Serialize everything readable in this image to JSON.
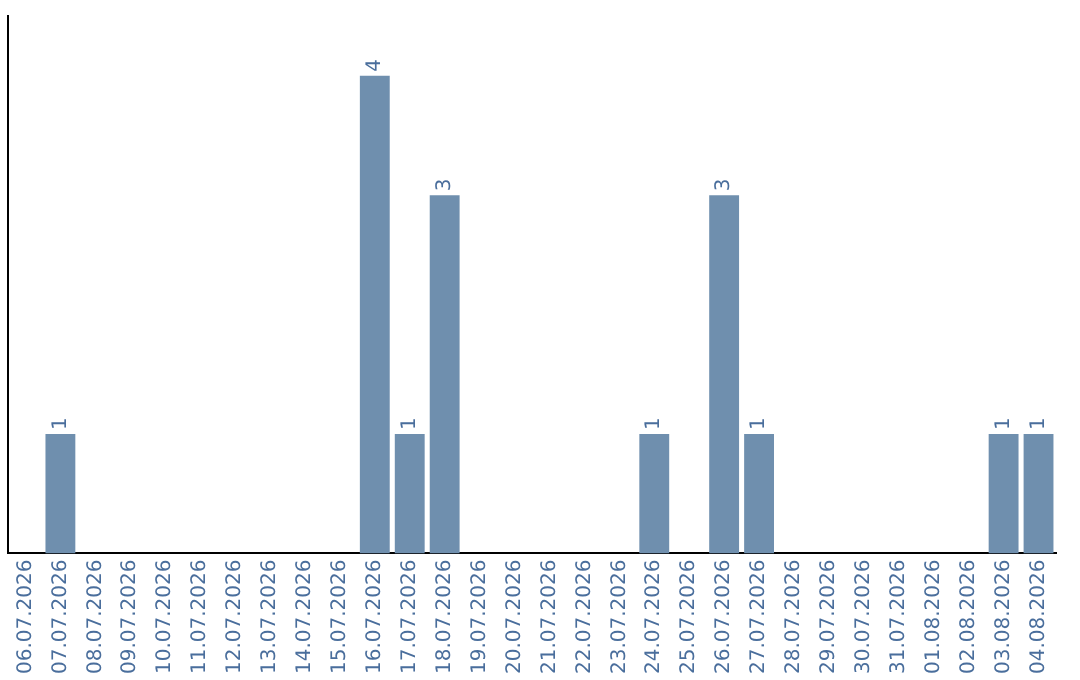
{
  "chart_data": {
    "type": "bar",
    "categories": [
      "06.07.2026",
      "07.07.2026",
      "08.07.2026",
      "09.07.2026",
      "10.07.2026",
      "11.07.2026",
      "12.07.2026",
      "13.07.2026",
      "14.07.2026",
      "15.07.2026",
      "16.07.2026",
      "17.07.2026",
      "18.07.2026",
      "19.07.2026",
      "20.07.2026",
      "21.07.2026",
      "22.07.2026",
      "23.07.2026",
      "24.07.2026",
      "25.07.2026",
      "26.07.2026",
      "27.07.2026",
      "28.07.2026",
      "29.07.2026",
      "30.07.2026",
      "31.07.2026",
      "01.08.2026",
      "02.08.2026",
      "03.08.2026",
      "04.08.2026"
    ],
    "values": [
      0,
      1,
      0,
      0,
      0,
      0,
      0,
      0,
      0,
      0,
      4,
      1,
      3,
      0,
      0,
      0,
      0,
      0,
      1,
      0,
      3,
      1,
      0,
      0,
      0,
      0,
      0,
      0,
      1,
      1
    ],
    "value_labels": [
      null,
      "1",
      null,
      null,
      null,
      null,
      null,
      null,
      null,
      null,
      "4",
      "1",
      "3",
      null,
      null,
      null,
      null,
      null,
      "1",
      null,
      "3",
      "1",
      null,
      null,
      null,
      null,
      null,
      null,
      "1",
      "1"
    ],
    "color": "#6f8fae",
    "grid": false,
    "tick_labels": "x",
    "legend": false
  }
}
